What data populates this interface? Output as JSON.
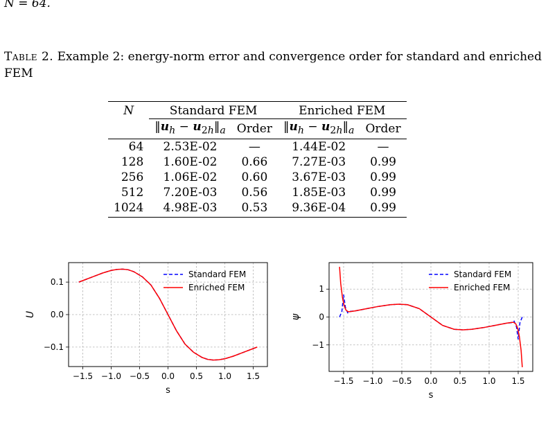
{
  "intro_text": "N = 64.",
  "caption": {
    "label": "Table 2.",
    "text": "Example 2: energy-norm error and convergence order for standard and enriched FEM"
  },
  "table": {
    "n_header": "N",
    "group_headers": [
      "Standard FEM",
      "Enriched FEM"
    ],
    "order_header": "Order",
    "rows": [
      {
        "n": "64",
        "std_err": "2.53E-02",
        "std_order": "—",
        "enr_err": "1.44E-02",
        "enr_order": "—"
      },
      {
        "n": "128",
        "std_err": "1.60E-02",
        "std_order": "0.66",
        "enr_err": "7.27E-03",
        "enr_order": "0.99"
      },
      {
        "n": "256",
        "std_err": "1.06E-02",
        "std_order": "0.60",
        "enr_err": "3.67E-03",
        "enr_order": "0.99"
      },
      {
        "n": "512",
        "std_err": "7.20E-03",
        "std_order": "0.56",
        "enr_err": "1.85E-03",
        "enr_order": "0.99"
      },
      {
        "n": "1024",
        "std_err": "4.98E-03",
        "std_order": "0.53",
        "enr_err": "9.36E-04",
        "enr_order": "0.99"
      }
    ]
  },
  "chart_data": [
    {
      "type": "line",
      "xlabel": "s",
      "ylabel": "U",
      "xlim": [
        -1.75,
        1.75
      ],
      "ylim": [
        -0.16,
        0.16
      ],
      "xticks": [
        -1.5,
        -1.0,
        -0.5,
        0.0,
        0.5,
        1.0,
        1.5
      ],
      "xtick_labels": [
        "−1.5",
        "−1.0",
        "−0.5",
        "0.0",
        "0.5",
        "1.0",
        "1.5"
      ],
      "yticks": [
        -0.1,
        0.0,
        0.1
      ],
      "ytick_labels": [
        "−0.1",
        "0.0",
        "0.1"
      ],
      "grid": true,
      "legend": "top-right",
      "series": [
        {
          "name": "Standard FEM",
          "color": "#0000ff",
          "style": "dashed",
          "x": [
            -1.57,
            -1.45,
            -1.3,
            -1.15,
            -1.0,
            -0.9,
            -0.8,
            -0.7,
            -0.6,
            -0.45,
            -0.3,
            -0.15,
            0.0,
            0.15,
            0.3,
            0.45,
            0.6,
            0.7,
            0.8,
            0.9,
            1.0,
            1.15,
            1.3,
            1.45,
            1.57
          ],
          "y": [
            0.1,
            0.108,
            0.118,
            0.128,
            0.136,
            0.139,
            0.14,
            0.138,
            0.132,
            0.116,
            0.091,
            0.05,
            0.0,
            -0.05,
            -0.091,
            -0.116,
            -0.132,
            -0.138,
            -0.14,
            -0.139,
            -0.136,
            -0.128,
            -0.118,
            -0.108,
            -0.1
          ]
        },
        {
          "name": "Enriched FEM",
          "color": "#ff0000",
          "style": "solid",
          "x": [
            -1.57,
            -1.45,
            -1.3,
            -1.15,
            -1.0,
            -0.9,
            -0.8,
            -0.7,
            -0.6,
            -0.45,
            -0.3,
            -0.15,
            0.0,
            0.15,
            0.3,
            0.45,
            0.6,
            0.7,
            0.8,
            0.9,
            1.0,
            1.15,
            1.3,
            1.45,
            1.57
          ],
          "y": [
            0.1,
            0.108,
            0.118,
            0.128,
            0.136,
            0.139,
            0.14,
            0.138,
            0.132,
            0.116,
            0.091,
            0.05,
            0.0,
            -0.05,
            -0.091,
            -0.116,
            -0.132,
            -0.138,
            -0.14,
            -0.139,
            -0.136,
            -0.128,
            -0.118,
            -0.108,
            -0.1
          ]
        }
      ]
    },
    {
      "type": "line",
      "xlabel": "s",
      "ylabel": "ψ",
      "xlim": [
        -1.75,
        1.75
      ],
      "ylim": [
        -1.95,
        1.95
      ],
      "xticks": [
        -1.5,
        -1.0,
        -0.5,
        0.0,
        0.5,
        1.0,
        1.5
      ],
      "xtick_labels": [
        "−1.5",
        "−1.0",
        "−0.5",
        "0.0",
        "0.5",
        "1.0",
        "1.5"
      ],
      "yticks": [
        -1,
        0,
        1
      ],
      "ytick_labels": [
        "−1",
        "0",
        "1"
      ],
      "grid": true,
      "legend": "top-right",
      "series": [
        {
          "name": "Standard FEM",
          "color": "#0000ff",
          "style": "dashed",
          "x": [
            -1.57,
            -1.53,
            -1.5,
            -1.47,
            -1.43,
            -1.4,
            -1.3,
            -1.1,
            -0.9,
            -0.7,
            -0.55,
            -0.4,
            -0.2,
            0.0,
            0.2,
            0.4,
            0.55,
            0.7,
            0.9,
            1.1,
            1.3,
            1.4,
            1.43,
            1.47,
            1.5,
            1.53,
            1.57
          ],
          "y": [
            0.0,
            0.2,
            0.8,
            0.35,
            0.15,
            0.2,
            0.22,
            0.3,
            0.38,
            0.44,
            0.46,
            0.44,
            0.3,
            0.0,
            -0.3,
            -0.44,
            -0.46,
            -0.44,
            -0.38,
            -0.3,
            -0.22,
            -0.2,
            -0.15,
            -0.35,
            -0.8,
            -0.2,
            0.0
          ]
        },
        {
          "name": "Enriched FEM",
          "color": "#ff0000",
          "style": "solid",
          "x": [
            -1.57,
            -1.55,
            -1.52,
            -1.49,
            -1.46,
            -1.43,
            -1.4,
            -1.3,
            -1.1,
            -0.9,
            -0.7,
            -0.55,
            -0.4,
            -0.2,
            0.0,
            0.2,
            0.4,
            0.55,
            0.7,
            0.9,
            1.1,
            1.3,
            1.4,
            1.43,
            1.46,
            1.49,
            1.52,
            1.55,
            1.57
          ],
          "y": [
            1.8,
            1.2,
            0.7,
            0.4,
            0.25,
            0.2,
            0.19,
            0.22,
            0.3,
            0.38,
            0.44,
            0.46,
            0.44,
            0.3,
            0.0,
            -0.3,
            -0.44,
            -0.46,
            -0.44,
            -0.38,
            -0.3,
            -0.22,
            -0.19,
            -0.2,
            -0.25,
            -0.4,
            -0.7,
            -1.2,
            -1.8
          ]
        }
      ]
    }
  ]
}
